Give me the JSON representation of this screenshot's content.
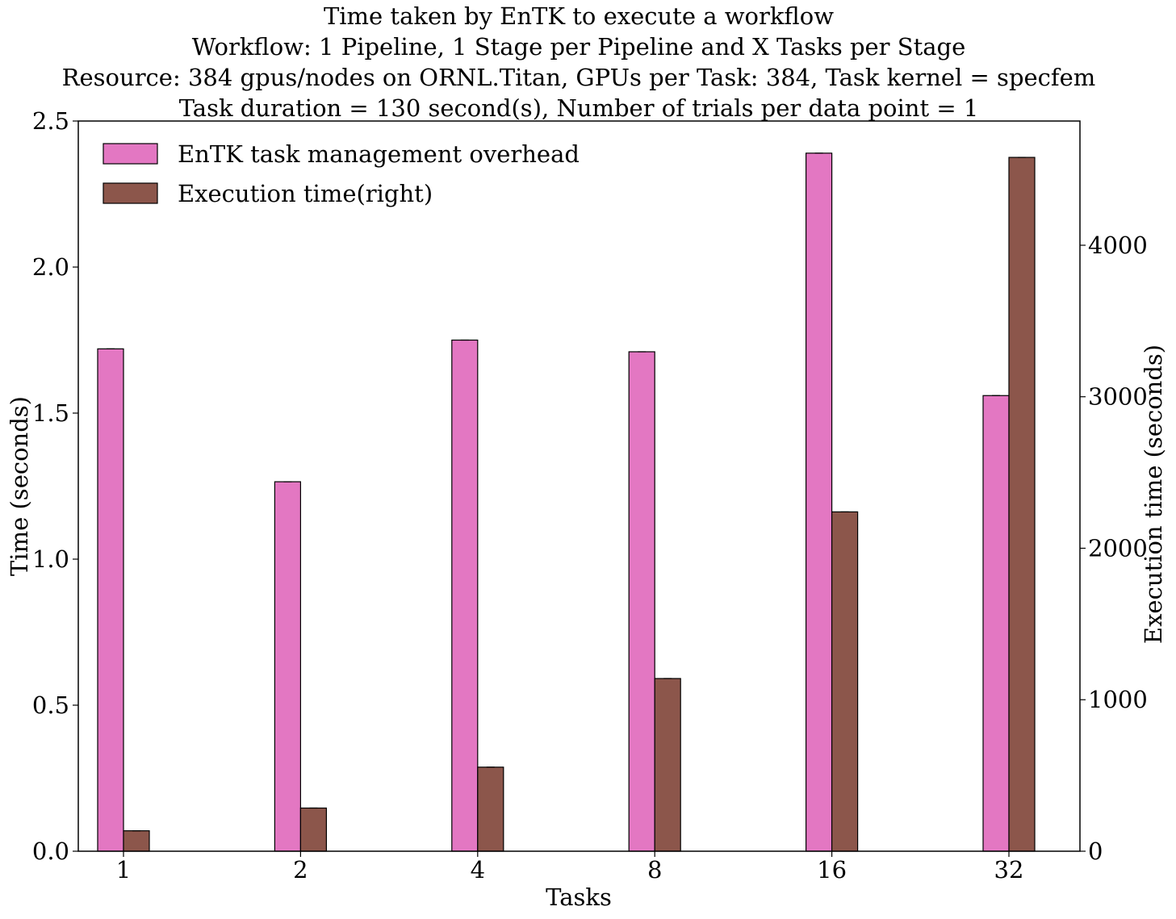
{
  "chart_data": {
    "type": "bar",
    "title_lines": [
      "Time taken by EnTK to execute a workflow",
      "Workflow: 1 Pipeline, 1 Stage per Pipeline and X Tasks per Stage",
      "Resource: 384 gpus/nodes on ORNL.Titan, GPUs per Task: 384, Task kernel = specfem",
      "Task duration =  130 second(s), Number of trials per data point = 1"
    ],
    "xlabel": "Tasks",
    "ylabel": "Time (seconds)",
    "y2label": "Execution time (seconds)",
    "categories": [
      "1",
      "2",
      "4",
      "8",
      "16",
      "32"
    ],
    "ylim": [
      0,
      2.5
    ],
    "y2lim": [
      0,
      4820
    ],
    "yticks": [
      "0.0",
      "0.5",
      "1.0",
      "1.5",
      "2.0",
      "2.5"
    ],
    "y2ticks": [
      "0",
      "1000",
      "2000",
      "3000",
      "4000"
    ],
    "legend_position": "top-left",
    "series": [
      {
        "name": "EnTK task management overhead",
        "axis": "left",
        "color": "#e377c2",
        "values": [
          1.72,
          1.265,
          1.75,
          1.71,
          2.39,
          1.56
        ]
      },
      {
        "name": "Execution time(right)",
        "axis": "right",
        "color": "#8c564b",
        "values": [
          135,
          285,
          555,
          1140,
          2240,
          4580
        ]
      }
    ]
  }
}
